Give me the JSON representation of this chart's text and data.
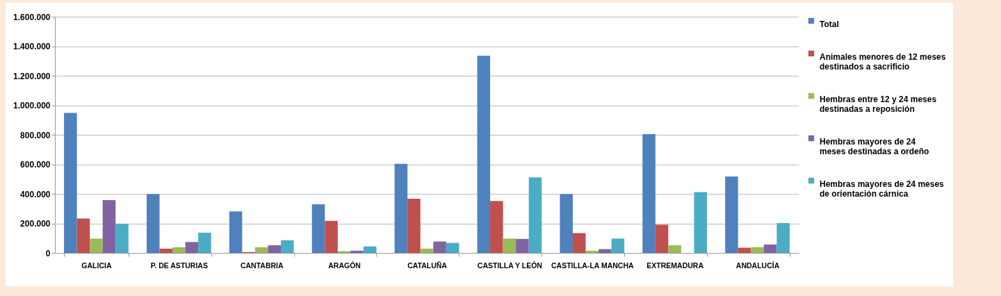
{
  "chart_data": {
    "type": "bar",
    "categories": [
      "GALICIA",
      "P. DE ASTURIAS",
      "CANTABRIA",
      "ARAGÓN",
      "CATALUÑA",
      "CASTILLA Y LEÓN",
      "CASTILLA-LA MANCHA",
      "EXTREMADURA",
      "ANDALUCÍA"
    ],
    "series": [
      {
        "name": "Total",
        "color": "#4f81bd",
        "values": [
          948000,
          399000,
          281000,
          330000,
          603000,
          1335000,
          399000,
          805000,
          518000
        ]
      },
      {
        "name": "Animales menores de 12 meses destinados a sacrificio",
        "color": "#c0504d",
        "values": [
          233000,
          29000,
          6000,
          217000,
          367000,
          352000,
          134000,
          191000,
          35000
        ]
      },
      {
        "name": "Hembras entre 12 y 24 meses destinadas a reposición",
        "color": "#9bbb59",
        "values": [
          97000,
          38000,
          38000,
          12000,
          29000,
          97000,
          15000,
          52000,
          39000
        ]
      },
      {
        "name": "Hembras mayores de 24 meses destinadas a ordeño",
        "color": "#8064a2",
        "values": [
          358000,
          74000,
          52000,
          15000,
          77000,
          95000,
          26000,
          0,
          57000
        ]
      },
      {
        "name": "Hembras mayores de 24 meses de orientación cárnica",
        "color": "#4bacc6",
        "values": [
          198000,
          137000,
          86000,
          44000,
          68000,
          512000,
          97000,
          412000,
          202000
        ]
      }
    ],
    "ylim": [
      0,
      1600000
    ],
    "yticks": [
      {
        "value": 0,
        "label": "0"
      },
      {
        "value": 200000,
        "label": "200.000"
      },
      {
        "value": 400000,
        "label": "400.000"
      },
      {
        "value": 600000,
        "label": "600.000"
      },
      {
        "value": 800000,
        "label": "800.000"
      },
      {
        "value": 1000000,
        "label": "1.000.000"
      },
      {
        "value": 1200000,
        "label": "1.200.000"
      },
      {
        "value": 1400000,
        "label": "1.400.000"
      },
      {
        "value": 1600000,
        "label": "1.600.000"
      }
    ],
    "grid": "y",
    "legend": "right"
  }
}
